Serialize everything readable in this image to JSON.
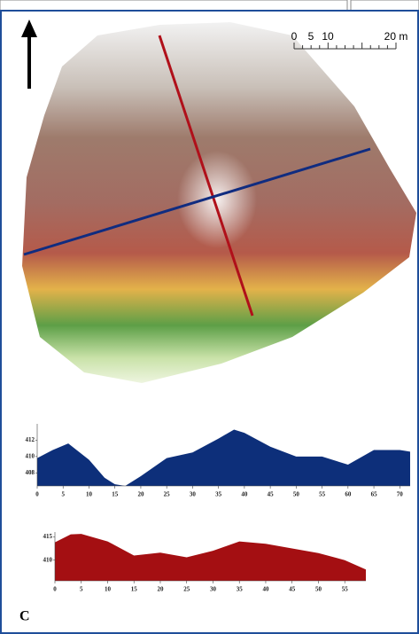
{
  "panel_label": "C",
  "scale_bar": {
    "labels": [
      "0",
      "5",
      "10",
      "20 m"
    ]
  },
  "chart_data": [
    {
      "type": "area",
      "x": [
        0,
        3,
        6,
        10,
        13,
        15,
        17,
        20,
        25,
        30,
        35,
        38,
        40,
        45,
        50,
        55,
        60,
        65,
        70,
        72
      ],
      "series": [
        {
          "color": "#0d2f7a",
          "values": [
            409.8,
            410.8,
            411.6,
            409.6,
            407.4,
            406.6,
            406.4,
            407.6,
            409.8,
            410.5,
            412.2,
            413.3,
            412.9,
            411.2,
            410,
            410,
            409,
            410.8,
            410.8,
            410.6
          ]
        }
      ],
      "xlim": [
        0,
        72
      ],
      "ylim": [
        406.4,
        414
      ],
      "xticks": [
        0,
        5,
        10,
        15,
        20,
        25,
        30,
        35,
        40,
        45,
        50,
        55,
        60,
        65,
        70
      ],
      "yticks": [
        408,
        410,
        412
      ]
    },
    {
      "type": "area",
      "x": [
        0,
        3,
        5,
        10,
        15,
        20,
        25,
        30,
        35,
        40,
        45,
        50,
        55,
        59
      ],
      "series": [
        {
          "color": "#a40f12",
          "values": [
            413.8,
            415.5,
            415.6,
            414,
            411,
            411.6,
            410.6,
            412,
            414,
            413.5,
            412.5,
            411.5,
            410,
            408
          ]
        }
      ],
      "xlim": [
        0,
        59
      ],
      "ylim": [
        405.6,
        416
      ],
      "xticks": [
        0,
        5,
        10,
        15,
        20,
        25,
        30,
        35,
        40,
        45,
        50,
        55
      ],
      "yticks": [
        410,
        415
      ]
    }
  ]
}
